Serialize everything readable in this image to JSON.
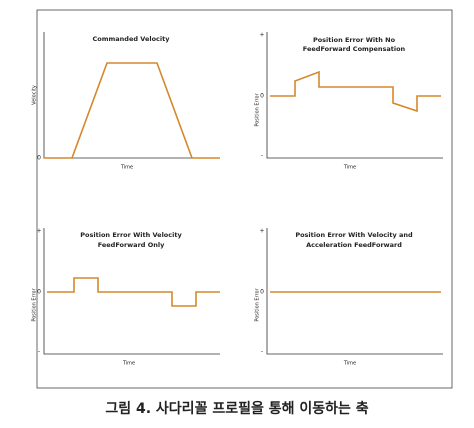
{
  "panels": [
    {
      "title": [
        "Commanded Velocity"
      ],
      "y_label": "Velocity",
      "y_ticks": [
        "0"
      ],
      "x_label": "Time"
    },
    {
      "title": [
        "Position Error With No",
        "FeedForward Compensation"
      ],
      "y_label": "Position Error",
      "y_ticks": [
        "+",
        "0",
        "-"
      ],
      "x_label": "Time"
    },
    {
      "title": [
        "Position Error With Velocity",
        "FeedForward Only"
      ],
      "y_label": "Position Error",
      "y_ticks": [
        "+",
        "0",
        "-"
      ],
      "x_label": "Time"
    },
    {
      "title": [
        "Position Error With Velocity and",
        "Acceleration FeedForward"
      ],
      "y_label": "Position Error",
      "y_ticks": [
        "+",
        "0",
        "-"
      ],
      "x_label": "Time"
    }
  ],
  "caption": "그림 4. 사다리꼴 프로필을 통해 이동하는 축"
}
